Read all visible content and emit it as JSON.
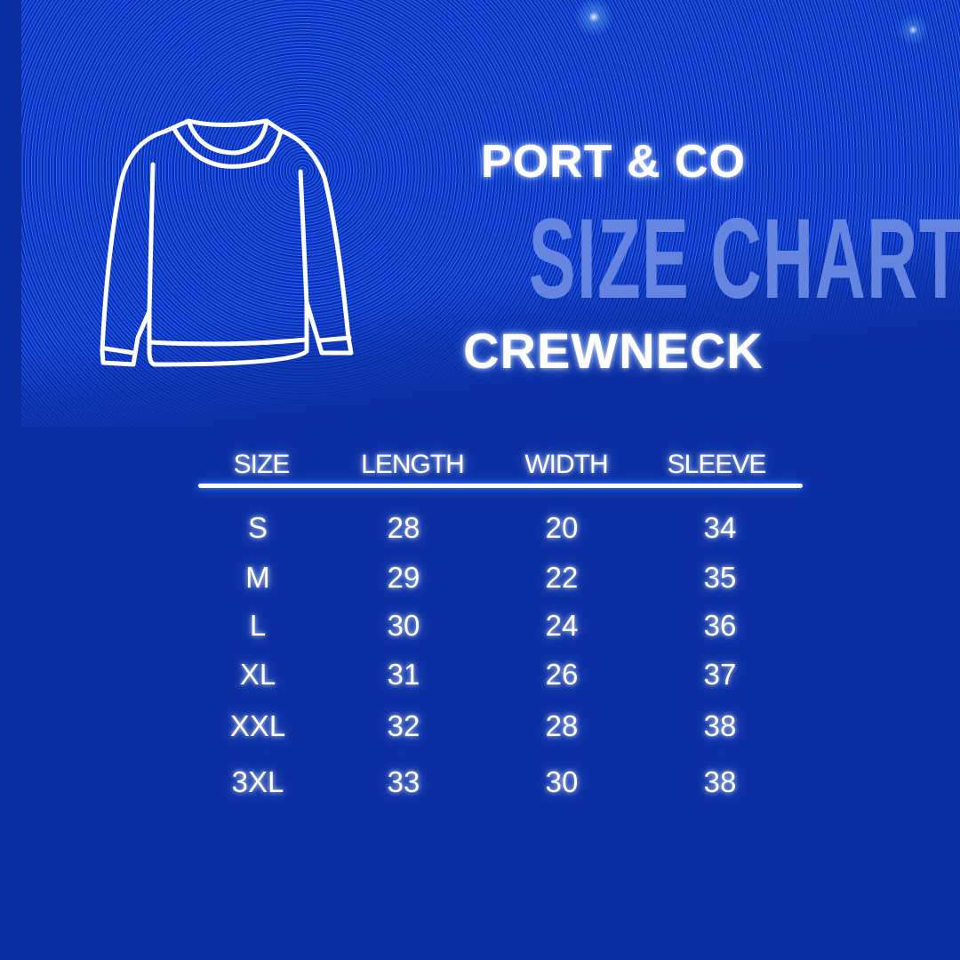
{
  "header": {
    "brand": "PORT & CO",
    "title": "SIZE CHART",
    "subtitle": "CREWNECK"
  },
  "illustration": {
    "icon": "crewneck-sweater-outline"
  },
  "colors": {
    "background": "#0c2fa2",
    "title": "#6585e0",
    "text": "#ffffff",
    "rule": "#ffffff"
  },
  "table": {
    "columns": [
      "SIZE",
      "LENGTH",
      "WIDTH",
      "SLEEVE"
    ],
    "rows": [
      [
        "S",
        "28",
        "20",
        "34"
      ],
      [
        "M",
        "29",
        "22",
        "35"
      ],
      [
        "L",
        "30",
        "24",
        "36"
      ],
      [
        "XL",
        "31",
        "26",
        "37"
      ],
      [
        "XXL",
        "32",
        "28",
        "38"
      ],
      [
        "3XL",
        "33",
        "30",
        "38"
      ]
    ]
  }
}
